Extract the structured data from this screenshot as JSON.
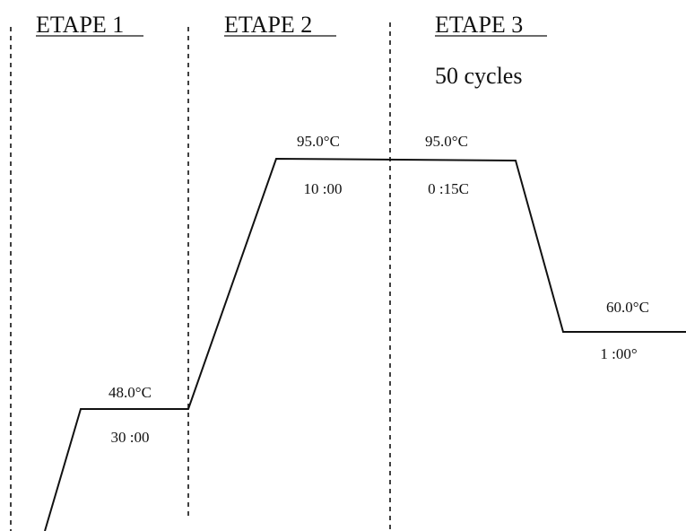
{
  "stages": [
    {
      "title": "ETAPE 1",
      "steps": [
        {
          "temperature": "48.0°C",
          "time": "30 :00"
        }
      ]
    },
    {
      "title": "ETAPE 2",
      "steps": [
        {
          "temperature": "95.0°C",
          "time": "10 :00"
        }
      ]
    },
    {
      "title": "ETAPE 3",
      "cycles": "50 cycles",
      "steps": [
        {
          "temperature": "95.0°C",
          "time": "0 :15C"
        },
        {
          "temperature": "60.0°C",
          "time": "1 :00°"
        }
      ]
    }
  ]
}
